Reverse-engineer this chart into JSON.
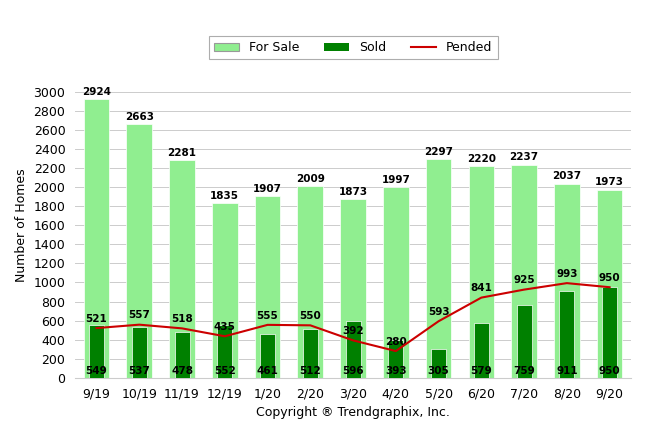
{
  "categories": [
    "9/19",
    "10/19",
    "11/19",
    "12/19",
    "1/20",
    "2/20",
    "3/20",
    "4/20",
    "5/20",
    "6/20",
    "7/20",
    "8/20",
    "9/20"
  ],
  "for_sale": [
    2924,
    2663,
    2281,
    1835,
    1907,
    2009,
    1873,
    1997,
    2297,
    2220,
    2237,
    2037,
    1973
  ],
  "sold": [
    549,
    537,
    478,
    552,
    461,
    512,
    596,
    393,
    305,
    579,
    759,
    911,
    950
  ],
  "pended": [
    521,
    557,
    518,
    435,
    555,
    550,
    392,
    280,
    593,
    841,
    925,
    993,
    950
  ],
  "for_sale_color": "#90EE90",
  "sold_color": "#008000",
  "pended_color": "#CC0000",
  "ylabel": "Number of Homes",
  "xlabel": "Copyright ® Trendgraphix, Inc.",
  "ylim": [
    0,
    3200
  ],
  "yticks": [
    0,
    200,
    400,
    600,
    800,
    1000,
    1200,
    1400,
    1600,
    1800,
    2000,
    2200,
    2400,
    2600,
    2800,
    3000
  ],
  "legend_for_sale": "For Sale",
  "legend_sold": "Sold",
  "legend_pended": "Pended",
  "for_sale_bar_width": 0.6,
  "sold_bar_width": 0.35,
  "label_fontsize": 7.5,
  "axis_fontsize": 9,
  "legend_fontsize": 9
}
